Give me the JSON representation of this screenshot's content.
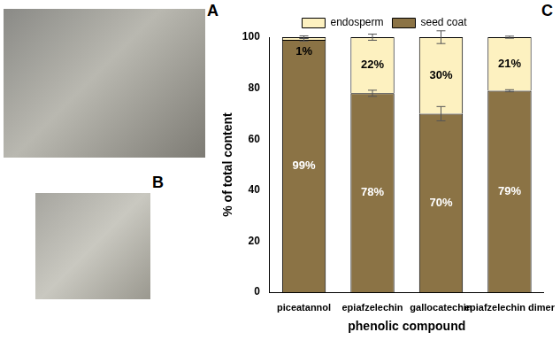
{
  "panel_labels": [
    "A",
    "B"
  ],
  "chart_label": "C",
  "chart_data": {
    "type": "bar",
    "stacked": true,
    "categories": [
      "piceatannol",
      "epiafzelechin",
      "gallocatechin",
      "epiafzelechin dimer"
    ],
    "series": [
      {
        "name": "seed coat",
        "color": "#8b7345",
        "values": [
          99,
          78,
          70,
          79
        ],
        "value_labels": [
          "99%",
          "78%",
          "70%",
          "79%"
        ],
        "errors": [
          0.5,
          1.2,
          2.8,
          0.4
        ]
      },
      {
        "name": "endosperm",
        "color": "#fdf1c0",
        "values": [
          1,
          22,
          30,
          21
        ],
        "value_labels": [
          "1%",
          "22%",
          "30%",
          "21%"
        ],
        "errors": [
          0.5,
          1.2,
          2.5,
          0.4
        ]
      }
    ],
    "x_label": "phenolic compound",
    "y_label": "% of total content",
    "ylim": [
      0,
      100
    ],
    "yticks": [
      0,
      20,
      40,
      60,
      80,
      100
    ],
    "legend": "top",
    "data_labels": true,
    "grid": false
  }
}
